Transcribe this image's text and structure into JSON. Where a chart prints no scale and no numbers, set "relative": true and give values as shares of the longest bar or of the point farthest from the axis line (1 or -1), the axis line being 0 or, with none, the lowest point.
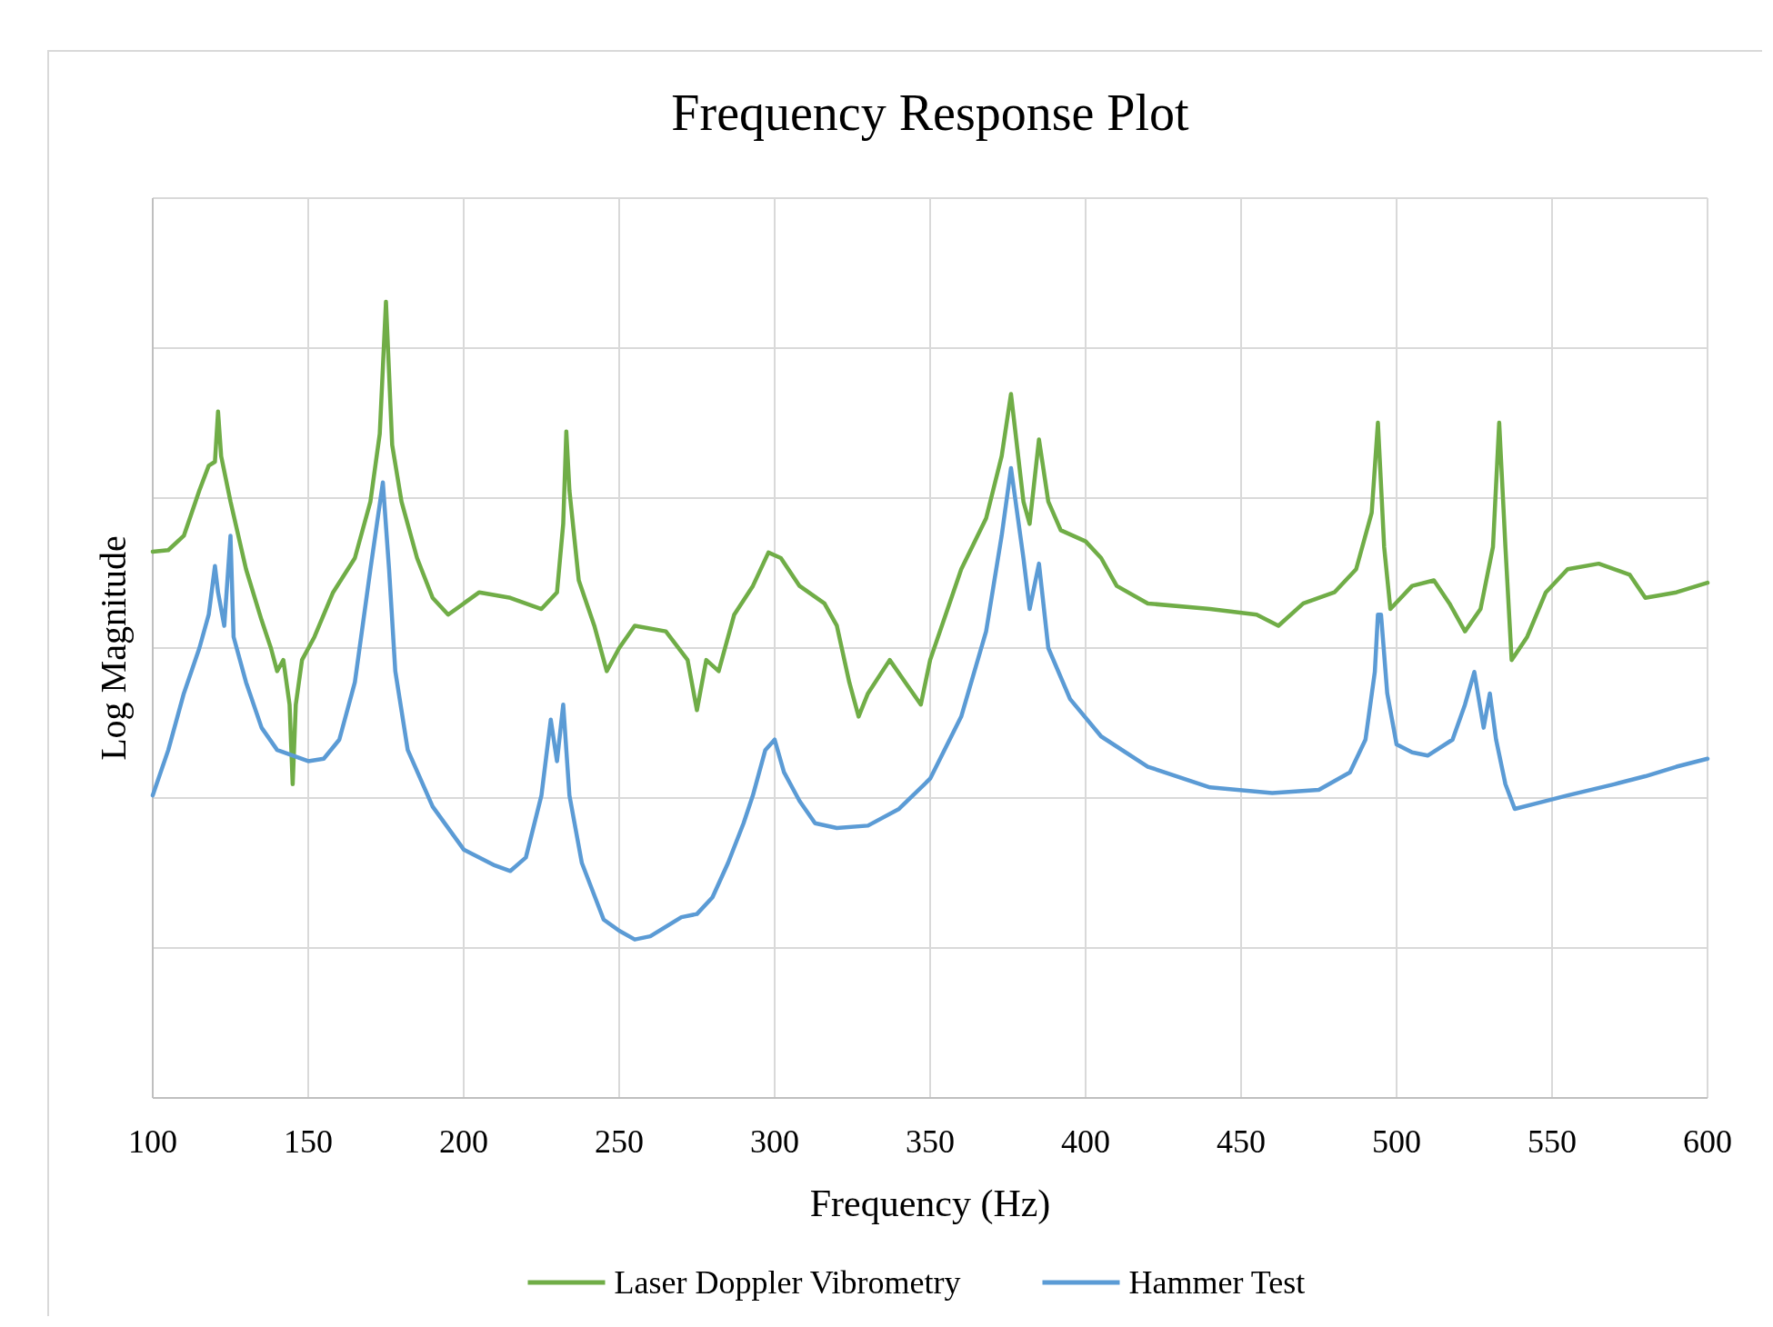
{
  "chart_data": {
    "type": "line",
    "title": "Frequency Response Plot",
    "xlabel": "Frequency (Hz)",
    "ylabel": "Log Magnitude",
    "relative": true,
    "grid": true,
    "legend": "bottom",
    "xlim": [
      100,
      600
    ],
    "xticks": [
      100,
      150,
      200,
      250,
      300,
      350,
      400,
      450,
      500,
      550,
      600
    ],
    "series": [
      {
        "name": "Laser Doppler Vibrometry",
        "color": "#70ad47",
        "x": [
          100,
          105,
          110,
          115,
          118,
          120,
          121,
          122,
          125,
          130,
          135,
          138,
          140,
          142,
          144,
          145,
          146,
          148,
          152,
          158,
          165,
          170,
          173,
          175,
          177,
          180,
          185,
          190,
          195,
          205,
          215,
          225,
          230,
          232,
          233,
          234,
          237,
          242,
          246,
          250,
          255,
          265,
          272,
          275,
          278,
          282,
          287,
          293,
          298,
          302,
          308,
          316,
          320,
          324,
          327,
          330,
          337,
          342,
          347,
          350,
          355,
          360,
          368,
          373,
          376,
          380,
          382,
          385,
          388,
          392,
          400,
          405,
          410,
          420,
          440,
          455,
          462,
          470,
          480,
          487,
          492,
          494,
          496,
          498,
          505,
          512,
          517,
          522,
          527,
          531,
          533,
          535,
          537,
          542,
          548,
          555,
          565,
          575,
          580,
          590,
          600
        ],
        "values": [
          0.686,
          0.688,
          0.706,
          0.763,
          0.794,
          0.799,
          0.862,
          0.806,
          0.749,
          0.664,
          0.6,
          0.565,
          0.536,
          0.55,
          0.494,
          0.394,
          0.494,
          0.55,
          0.579,
          0.635,
          0.678,
          0.749,
          0.834,
          1.0,
          0.82,
          0.749,
          0.678,
          0.628,
          0.607,
          0.635,
          0.628,
          0.614,
          0.635,
          0.721,
          0.837,
          0.763,
          0.65,
          0.593,
          0.536,
          0.565,
          0.593,
          0.586,
          0.55,
          0.487,
          0.55,
          0.536,
          0.607,
          0.643,
          0.685,
          0.678,
          0.643,
          0.621,
          0.593,
          0.522,
          0.479,
          0.508,
          0.55,
          0.522,
          0.494,
          0.55,
          0.607,
          0.664,
          0.728,
          0.806,
          0.884,
          0.749,
          0.721,
          0.827,
          0.749,
          0.713,
          0.699,
          0.678,
          0.643,
          0.621,
          0.614,
          0.607,
          0.593,
          0.621,
          0.635,
          0.664,
          0.735,
          0.848,
          0.692,
          0.614,
          0.643,
          0.65,
          0.621,
          0.586,
          0.614,
          0.692,
          0.848,
          0.692,
          0.55,
          0.579,
          0.635,
          0.664,
          0.671,
          0.657,
          0.628,
          0.635,
          0.647
        ]
      },
      {
        "name": "Hammer Test",
        "color": "#5b9bd5",
        "x": [
          100,
          105,
          110,
          115,
          118,
          120,
          121,
          123,
          125,
          126,
          130,
          135,
          140,
          150,
          155,
          160,
          165,
          170,
          174,
          176,
          178,
          182,
          190,
          200,
          210,
          215,
          220,
          225,
          228,
          230,
          232,
          234,
          238,
          245,
          250,
          255,
          260,
          270,
          275,
          280,
          285,
          290,
          293,
          297,
          300,
          303,
          308,
          313,
          320,
          330,
          340,
          350,
          360,
          368,
          373,
          376,
          380,
          382,
          385,
          388,
          395,
          405,
          420,
          440,
          460,
          475,
          485,
          490,
          493,
          494,
          495,
          497,
          500,
          505,
          510,
          518,
          522,
          525,
          528,
          530,
          532,
          535,
          538,
          545,
          555,
          570,
          580,
          590,
          600
        ],
        "values": [
          0.38,
          0.437,
          0.508,
          0.565,
          0.607,
          0.668,
          0.635,
          0.593,
          0.706,
          0.579,
          0.522,
          0.465,
          0.437,
          0.423,
          0.426,
          0.45,
          0.522,
          0.664,
          0.773,
          0.664,
          0.536,
          0.437,
          0.366,
          0.312,
          0.292,
          0.285,
          0.302,
          0.38,
          0.475,
          0.423,
          0.494,
          0.38,
          0.295,
          0.224,
          0.21,
          0.199,
          0.203,
          0.227,
          0.231,
          0.252,
          0.295,
          0.345,
          0.38,
          0.437,
          0.45,
          0.409,
          0.373,
          0.345,
          0.339,
          0.342,
          0.363,
          0.401,
          0.479,
          0.586,
          0.706,
          0.791,
          0.678,
          0.614,
          0.671,
          0.565,
          0.501,
          0.454,
          0.416,
          0.39,
          0.383,
          0.387,
          0.409,
          0.45,
          0.535,
          0.607,
          0.607,
          0.508,
          0.444,
          0.434,
          0.43,
          0.45,
          0.494,
          0.535,
          0.465,
          0.508,
          0.45,
          0.394,
          0.363,
          0.37,
          0.38,
          0.394,
          0.404,
          0.416,
          0.426
        ]
      }
    ]
  }
}
